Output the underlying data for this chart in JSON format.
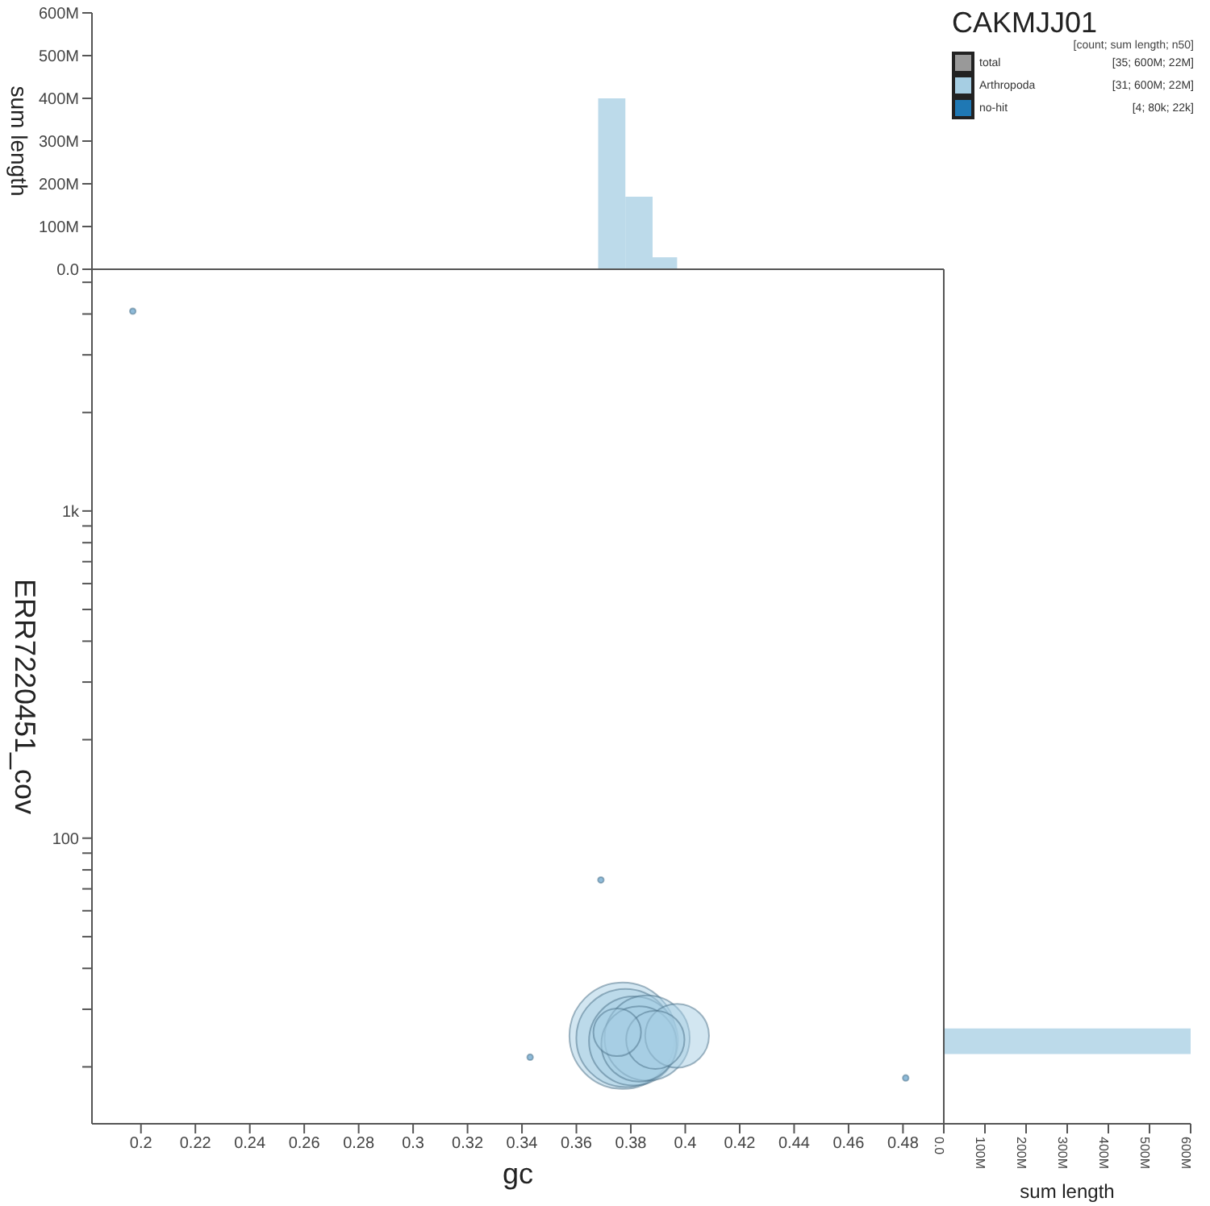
{
  "chart_data": [
    {
      "type": "histogram",
      "ylabel": "sum length",
      "bins": [
        0.368,
        0.378,
        0.388,
        0.397
      ],
      "values": [
        400000000,
        170000000,
        28000000
      ],
      "color": "#a6cee3",
      "xlim": [
        0.182,
        0.495
      ],
      "ylim": [
        0,
        600000000
      ],
      "yticks": [
        {
          "value": 0,
          "label": "0.0"
        },
        {
          "value": 100000000,
          "label": "100M"
        },
        {
          "value": 200000000,
          "label": "200M"
        },
        {
          "value": 300000000,
          "label": "300M"
        },
        {
          "value": 400000000,
          "label": "400M"
        },
        {
          "value": 500000000,
          "label": "500M"
        },
        {
          "value": 600000000,
          "label": "600M"
        }
      ],
      "tick_labels": "y"
    },
    {
      "type": "bubble",
      "xlabel": "gc",
      "ylabel": "ERR7220451_cov",
      "log": "y",
      "legend": "top right",
      "legend_title": "CAKMJJ01",
      "annotations": [
        "[count; sum length; n50]",
        "[35; 600M; 22M]",
        "[31; 600M; 22M]",
        "[4; 80k; 22k]"
      ],
      "xlim": [
        0.182,
        0.495
      ],
      "xticks": [
        0.2,
        0.22,
        0.24,
        0.26,
        0.28,
        0.3,
        0.32,
        0.34,
        0.36,
        0.38,
        0.4,
        0.42,
        0.44,
        0.46,
        0.48
      ],
      "ylim": [
        13.4,
        5480
      ],
      "yticks": [
        {
          "value": 20,
          "label": null
        },
        {
          "value": 30,
          "label": null
        },
        {
          "value": 40,
          "label": null
        },
        {
          "value": 50,
          "label": null
        },
        {
          "value": 60,
          "label": null
        },
        {
          "value": 70,
          "label": null
        },
        {
          "value": 80,
          "label": null
        },
        {
          "value": 90,
          "label": null
        },
        {
          "value": 100,
          "label": "100"
        },
        {
          "value": 200,
          "label": null
        },
        {
          "value": 300,
          "label": null
        },
        {
          "value": 400,
          "label": null
        },
        {
          "value": 500,
          "label": null
        },
        {
          "value": 600,
          "label": null
        },
        {
          "value": 700,
          "label": null
        },
        {
          "value": 800,
          "label": null
        },
        {
          "value": 900,
          "label": null
        },
        {
          "value": 1000,
          "label": "1k"
        },
        {
          "value": 2000,
          "label": null
        },
        {
          "value": 3000,
          "label": null
        },
        {
          "value": 4000,
          "label": null
        },
        {
          "value": 5000,
          "label": null
        }
      ],
      "series": [
        {
          "name": "total",
          "color": "#999999"
        },
        {
          "name": "Arthropoda",
          "color": "#a6cee3",
          "x": [
            0.377,
            0.378,
            0.381,
            0.386,
            0.383,
            0.397,
            0.389,
            0.375
          ],
          "values": [
            24.9,
            24.5,
            24,
            24.5,
            23.5,
            24.9,
            24.2,
            25.5
          ],
          "sizes": [
            1,
            0.85,
            0.7,
            0.64,
            0.5,
            0.36,
            0.3,
            0.2
          ]
        },
        {
          "name": "no-hit",
          "color": "#1f78b4",
          "x": [
            0.197,
            0.369,
            0.343,
            0.481
          ],
          "values": [
            4080,
            74.5,
            21.4,
            18.5
          ],
          "sizes": [
            0.003,
            0.003,
            0.003,
            0.003
          ]
        }
      ]
    },
    {
      "type": "histogram",
      "orientation": "horizontal",
      "xlabel": "sum length",
      "log": "y",
      "bins": [
        21.9,
        26.2
      ],
      "values": [
        600000000
      ],
      "color": "#a6cee3",
      "xlim": [
        0,
        600000000
      ],
      "xticks": [
        {
          "value": 0,
          "label": "0.0"
        },
        {
          "value": 100000000,
          "label": "100M"
        },
        {
          "value": 200000000,
          "label": "200M"
        },
        {
          "value": 300000000,
          "label": "300M"
        },
        {
          "value": 400000000,
          "label": "400M"
        },
        {
          "value": 500000000,
          "label": "500M"
        },
        {
          "value": 600000000,
          "label": "600M"
        }
      ],
      "ylim": [
        13.4,
        5480
      ],
      "tick_labels": "x"
    }
  ]
}
